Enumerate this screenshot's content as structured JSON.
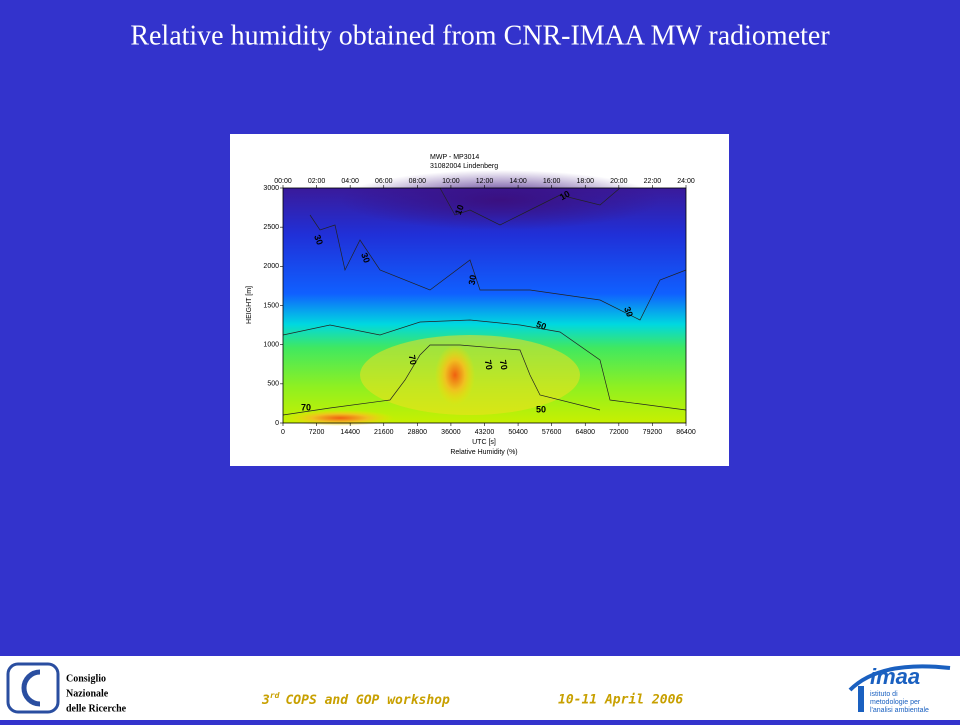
{
  "header": {
    "title": "Relative humidity obtained from CNR-IMAA MW radiometer"
  },
  "chart_data": {
    "type": "heatmap",
    "title": "MWP - MP3014",
    "subtitle": "31082004 Lindenberg",
    "x_label": "UTC [s]",
    "y_label": "HEIGHT [m]",
    "colorbar_label": "Relative Humidity (%)",
    "xlim": [
      0,
      86400
    ],
    "xticks": [
      0,
      7200,
      14400,
      21600,
      28800,
      36000,
      43200,
      50400,
      57600,
      64800,
      72000,
      79200,
      86400
    ],
    "x2ticks": [
      {
        "value": 0,
        "label": "00:00"
      },
      {
        "value": 7200,
        "label": "02:00"
      },
      {
        "value": 14400,
        "label": "04:00"
      },
      {
        "value": 21600,
        "label": "06:00"
      },
      {
        "value": 28800,
        "label": "08:00"
      },
      {
        "value": 36000,
        "label": "10:00"
      },
      {
        "value": 43200,
        "label": "12:00"
      },
      {
        "value": 50400,
        "label": "14:00"
      },
      {
        "value": 57600,
        "label": "16:00"
      },
      {
        "value": 64800,
        "label": "18:00"
      },
      {
        "value": 72000,
        "label": "20:00"
      },
      {
        "value": 79200,
        "label": "22:00"
      },
      {
        "value": 86400,
        "label": "24:00"
      }
    ],
    "ylim": [
      0,
      3000
    ],
    "yticks": [
      0,
      500,
      1000,
      1500,
      2000,
      2500,
      3000
    ],
    "contour_labels": [
      10,
      10,
      30,
      30,
      30,
      30,
      50,
      50,
      70,
      70,
      70,
      70
    ]
  },
  "footer": {
    "org": [
      "Consiglio",
      "Nazionale",
      "delle Ricerche"
    ],
    "event_ordinal": "3",
    "event_suffix": "rd",
    "event": "COPS and GOP workshop",
    "dates": "10-11 April 2006",
    "logo": "imaa",
    "logo_text": [
      "istituto di",
      "metodologie per",
      "l'analisi ambientale"
    ]
  }
}
